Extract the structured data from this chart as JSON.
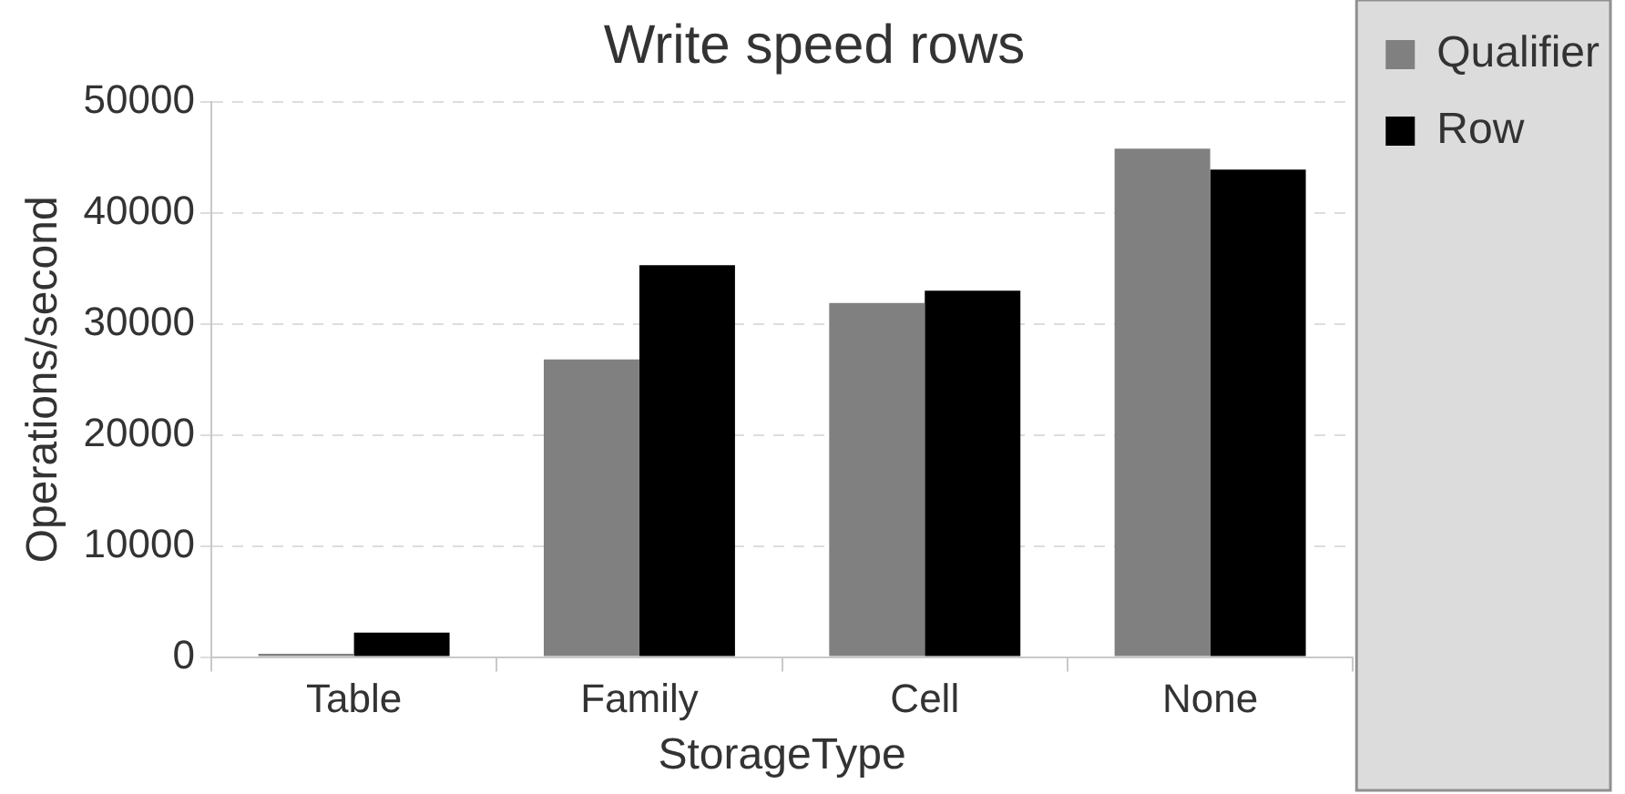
{
  "chart_data": {
    "type": "bar",
    "title": "Write speed rows",
    "xlabel": "StorageType",
    "ylabel": "Operations/second",
    "categories": [
      "Table",
      "Family",
      "Cell",
      "None"
    ],
    "series": [
      {
        "name": "Qualifier",
        "color": "#808080",
        "values": [
          300,
          26800,
          31900,
          45800
        ]
      },
      {
        "name": "Row",
        "color": "#000000",
        "values": [
          2200,
          35300,
          33000,
          43900
        ]
      }
    ],
    "ylim": [
      0,
      50000
    ],
    "yticks": [
      0,
      10000,
      20000,
      30000,
      40000,
      50000
    ],
    "grid": "y",
    "legend": "right"
  }
}
